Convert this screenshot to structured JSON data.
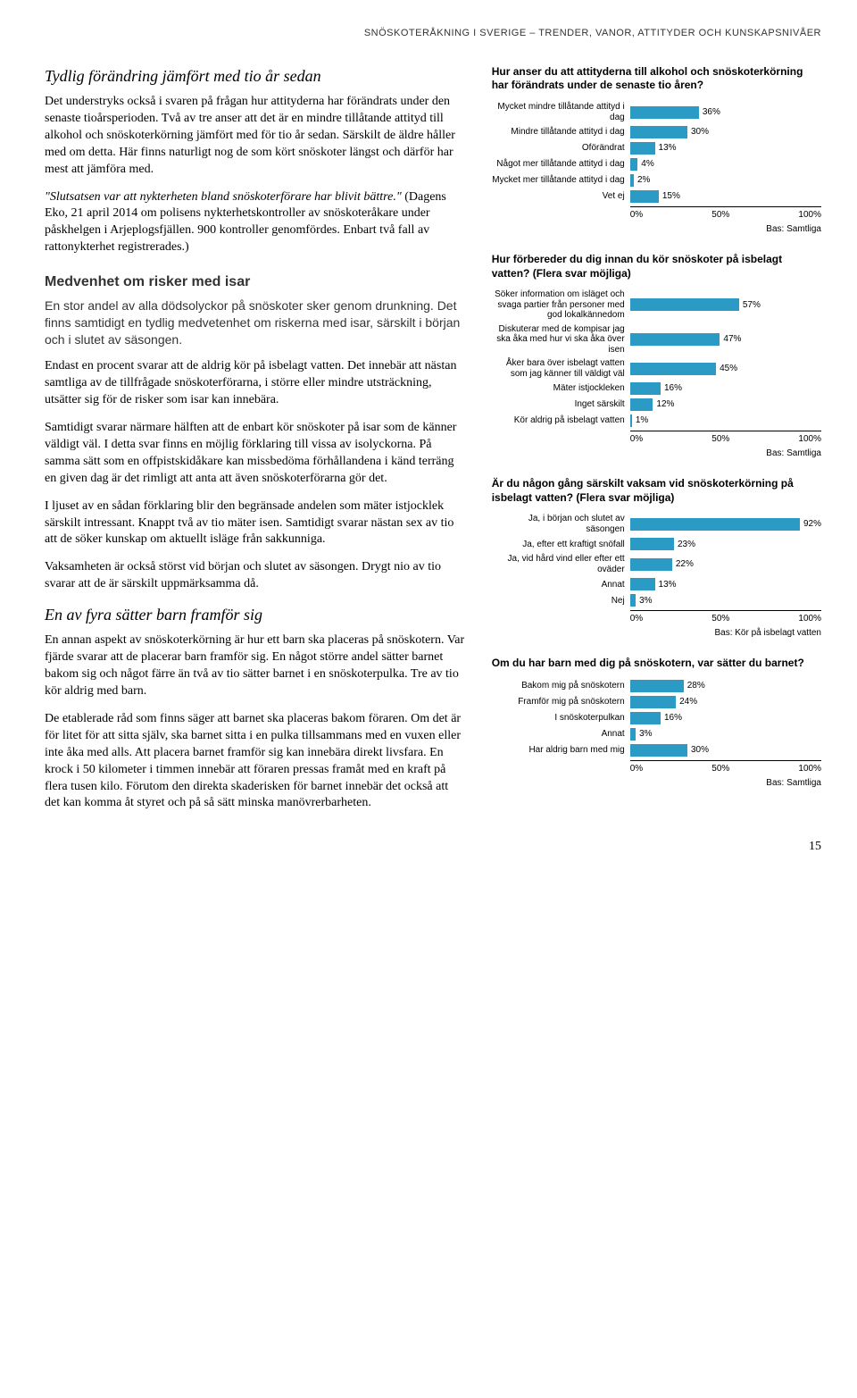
{
  "header": "SNÖSKOTERÅKNING I SVERIGE – TRENDER, VANOR, ATTITYDER OCH KUNSKAPSNIVÅER",
  "left": {
    "h1": "Tydlig förändring jämfört med tio år sedan",
    "p1": "Det understryks också i svaren på frågan hur attityderna har förändrats under den senaste tioårsperioden. Två av tre anser att det är en mindre tillåtande attityd till alkohol och snöskoterkörning jämfört med för tio år sedan. Särskilt de äldre håller med om detta. Här finns naturligt nog de som kört snöskoter längst och därför har mest att jämföra med.",
    "p2a": "\"Slutsatsen var att nykterheten bland snöskoterförare har blivit bättre.\"",
    "p2b": " (Dagens Eko, 21 april 2014 om polisens nykterhetskontroller av snöskoteråkare under påskhelgen i Arjeplogsfjällen. 900 kontroller genomfördes. Enbart två fall av rattonykterhet registrerades.)",
    "h2": "Medvenhet om risker med isar",
    "p3": "En stor andel av alla dödsolyckor på snöskoter sker genom drunkning. Det finns samtidigt en tydlig medvetenhet om riskerna med isar, särskilt i början och i slutet av säsongen.",
    "p4": "Endast en procent svarar att de aldrig kör på isbelagt vatten. Det innebär att nästan samtliga av de tillfrågade snöskoterförarna, i större eller mindre utsträckning, utsätter sig för de risker som isar kan innebära.",
    "p5": "Samtidigt svarar närmare hälften att de enbart kör snöskoter på isar som de känner väldigt väl. I detta svar finns en möjlig förklaring till vissa av isolyckorna. På samma sätt som en offpistskidåkare kan missbedöma förhållandena i känd terräng en given dag är det rimligt att anta att även snöskoterförarna gör det.",
    "p6": "I ljuset av en sådan förklaring blir den begränsade andelen som mäter istjocklek särskilt intressant. Knappt två av tio mäter isen. Samtidigt svarar nästan sex av tio att de söker kunskap om aktuellt isläge från sakkunniga.",
    "p7": "Vaksamheten är också störst vid början och slutet av säsongen. Drygt nio av tio svarar att de är särskilt uppmärksamma då.",
    "h3": "En av fyra sätter barn framför sig",
    "p8": "En annan aspekt av snöskoterkörning är hur ett barn ska placeras på snöskotern. Var fjärde svarar att de placerar barn framför sig. En något större andel sätter barnet bakom sig och något färre än två av tio sätter barnet i en snöskoterpulka. Tre av tio kör aldrig med barn.",
    "p9": "De etablerade råd som finns säger att barnet ska placeras bakom föraren. Om det är för litet för att sitta själv, ska barnet sitta i en pulka tillsammans med en vuxen eller inte åka med alls. Att placera barnet framför sig kan innebära direkt livsfara. En krock i 50 kilometer i timmen innebär att föraren pressas framåt med en kraft på flera tusen kilo. Förutom den direkta skaderisken för barnet innebär det också att det kan komma åt styret och på så sätt minska manövrerbarheten."
  },
  "bar_color": "#2b9bc6",
  "charts": [
    {
      "title": "Hur anser du att attityderna till alkohol och snöskoterkörning har förändrats under de senaste tio åren?",
      "rows": [
        {
          "label": "Mycket mindre tillåtande attityd i dag",
          "val": 36
        },
        {
          "label": "Mindre tillåtande attityd i dag",
          "val": 30
        },
        {
          "label": "Oförändrat",
          "val": 13
        },
        {
          "label": "Något mer tillåtande attityd i dag",
          "val": 4
        },
        {
          "label": "Mycket mer tillåtande attityd i dag",
          "val": 2
        },
        {
          "label": "Vet ej",
          "val": 15
        }
      ],
      "axis": [
        "0%",
        "50%",
        "100%"
      ],
      "base": "Bas: Samtliga"
    },
    {
      "title": "Hur förbereder du dig innan du kör snöskoter på isbelagt vatten? (Flera svar möjliga)",
      "rows": [
        {
          "label": "Söker information om isläget och svaga partier från personer med god lokalkännedom",
          "val": 57
        },
        {
          "label": "Diskuterar med de kompisar jag ska åka med hur vi ska åka över isen",
          "val": 47
        },
        {
          "label": "Åker bara över isbelagt vatten som jag känner till väldigt väl",
          "val": 45
        },
        {
          "label": "Mäter istjockleken",
          "val": 16
        },
        {
          "label": "Inget särskilt",
          "val": 12
        },
        {
          "label": "Kör aldrig på isbelagt vatten",
          "val": 1
        }
      ],
      "axis": [
        "0%",
        "50%",
        "100%"
      ],
      "base": "Bas: Samtliga"
    },
    {
      "title": "Är du någon gång särskilt vaksam vid snöskoterkörning på isbelagt vatten? (Flera svar möjliga)",
      "rows": [
        {
          "label": "Ja, i början och slutet av säsongen",
          "val": 92
        },
        {
          "label": "Ja, efter ett kraftigt snöfall",
          "val": 23
        },
        {
          "label": "Ja, vid hård vind eller efter ett oväder",
          "val": 22
        },
        {
          "label": "Annat",
          "val": 13
        },
        {
          "label": "Nej",
          "val": 3
        }
      ],
      "axis": [
        "0%",
        "50%",
        "100%"
      ],
      "base": "Bas: Kör på isbelagt vatten"
    },
    {
      "title": "Om du har barn med dig på snöskotern, var sätter du barnet?",
      "rows": [
        {
          "label": "Bakom mig på snöskotern",
          "val": 28
        },
        {
          "label": "Framför mig på snöskotern",
          "val": 24
        },
        {
          "label": "I snöskoterpulkan",
          "val": 16
        },
        {
          "label": "Annat",
          "val": 3
        },
        {
          "label": "Har aldrig barn med mig",
          "val": 30
        }
      ],
      "axis": [
        "0%",
        "50%",
        "100%"
      ],
      "base": "Bas: Samtliga"
    }
  ],
  "page_num": "15"
}
